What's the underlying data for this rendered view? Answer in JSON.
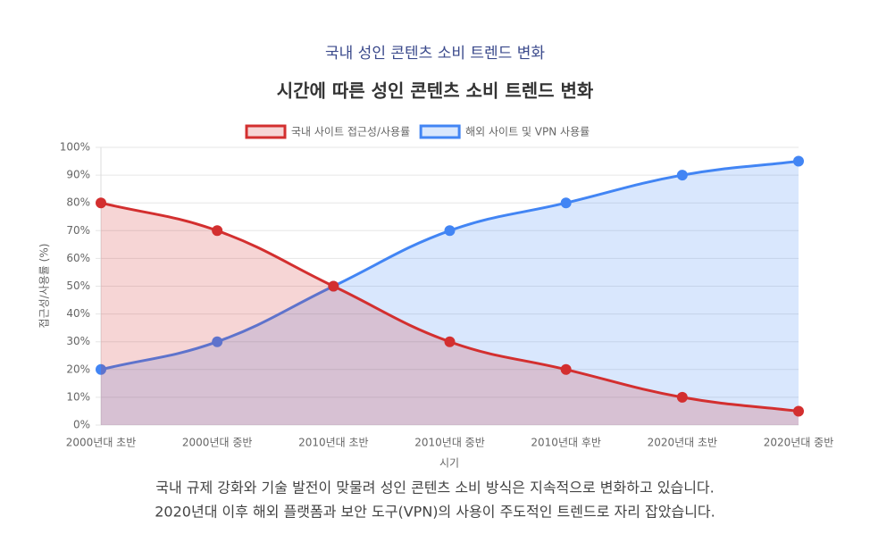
{
  "chart_data": {
    "type": "line",
    "subtitle": "국내 성인 콘텐츠 소비 트렌드 변화",
    "title": "시간에 따른 성인 콘텐츠 소비 트렌드 변화",
    "x_label": "시기",
    "y_label": "접근성/사용률 (%)",
    "categories": [
      "2000년대 초반",
      "2000년대 중반",
      "2010년대 초반",
      "2010년대 중반",
      "2010년대 후반",
      "2020년대 초반",
      "2020년대 중반"
    ],
    "series": [
      {
        "name": "국내 사이트 접근성/사용률",
        "color": "#d32f2f",
        "values": [
          80,
          70,
          50,
          30,
          20,
          10,
          5
        ]
      },
      {
        "name": "해외 사이트 및 VPN 사용률",
        "color": "#4285f4",
        "values": [
          20,
          30,
          50,
          70,
          80,
          90,
          95
        ]
      }
    ],
    "ylim": [
      0,
      100
    ],
    "yticks": [
      {
        "value": 0,
        "label": "0%"
      },
      {
        "value": 10,
        "label": "10%"
      },
      {
        "value": 20,
        "label": "20%"
      },
      {
        "value": 30,
        "label": "30%"
      },
      {
        "value": 40,
        "label": "40%"
      },
      {
        "value": 50,
        "label": "50%"
      },
      {
        "value": 60,
        "label": "60%"
      },
      {
        "value": 70,
        "label": "70%"
      },
      {
        "value": 80,
        "label": "80%"
      },
      {
        "value": 90,
        "label": "90%"
      },
      {
        "value": 100,
        "label": "100%"
      }
    ],
    "grid": true,
    "legend": "top",
    "annotations": [
      "국내 규제 강화와 기술 발전이 맞물려 성인 콘텐츠 소비 방식은 지속적으로 변화하고 있습니다.",
      "2020년대 이후 해외 플랫폼과 보안 도구(VPN)의 사용이 주도적인 트렌드로 자리 잡았습니다."
    ]
  }
}
